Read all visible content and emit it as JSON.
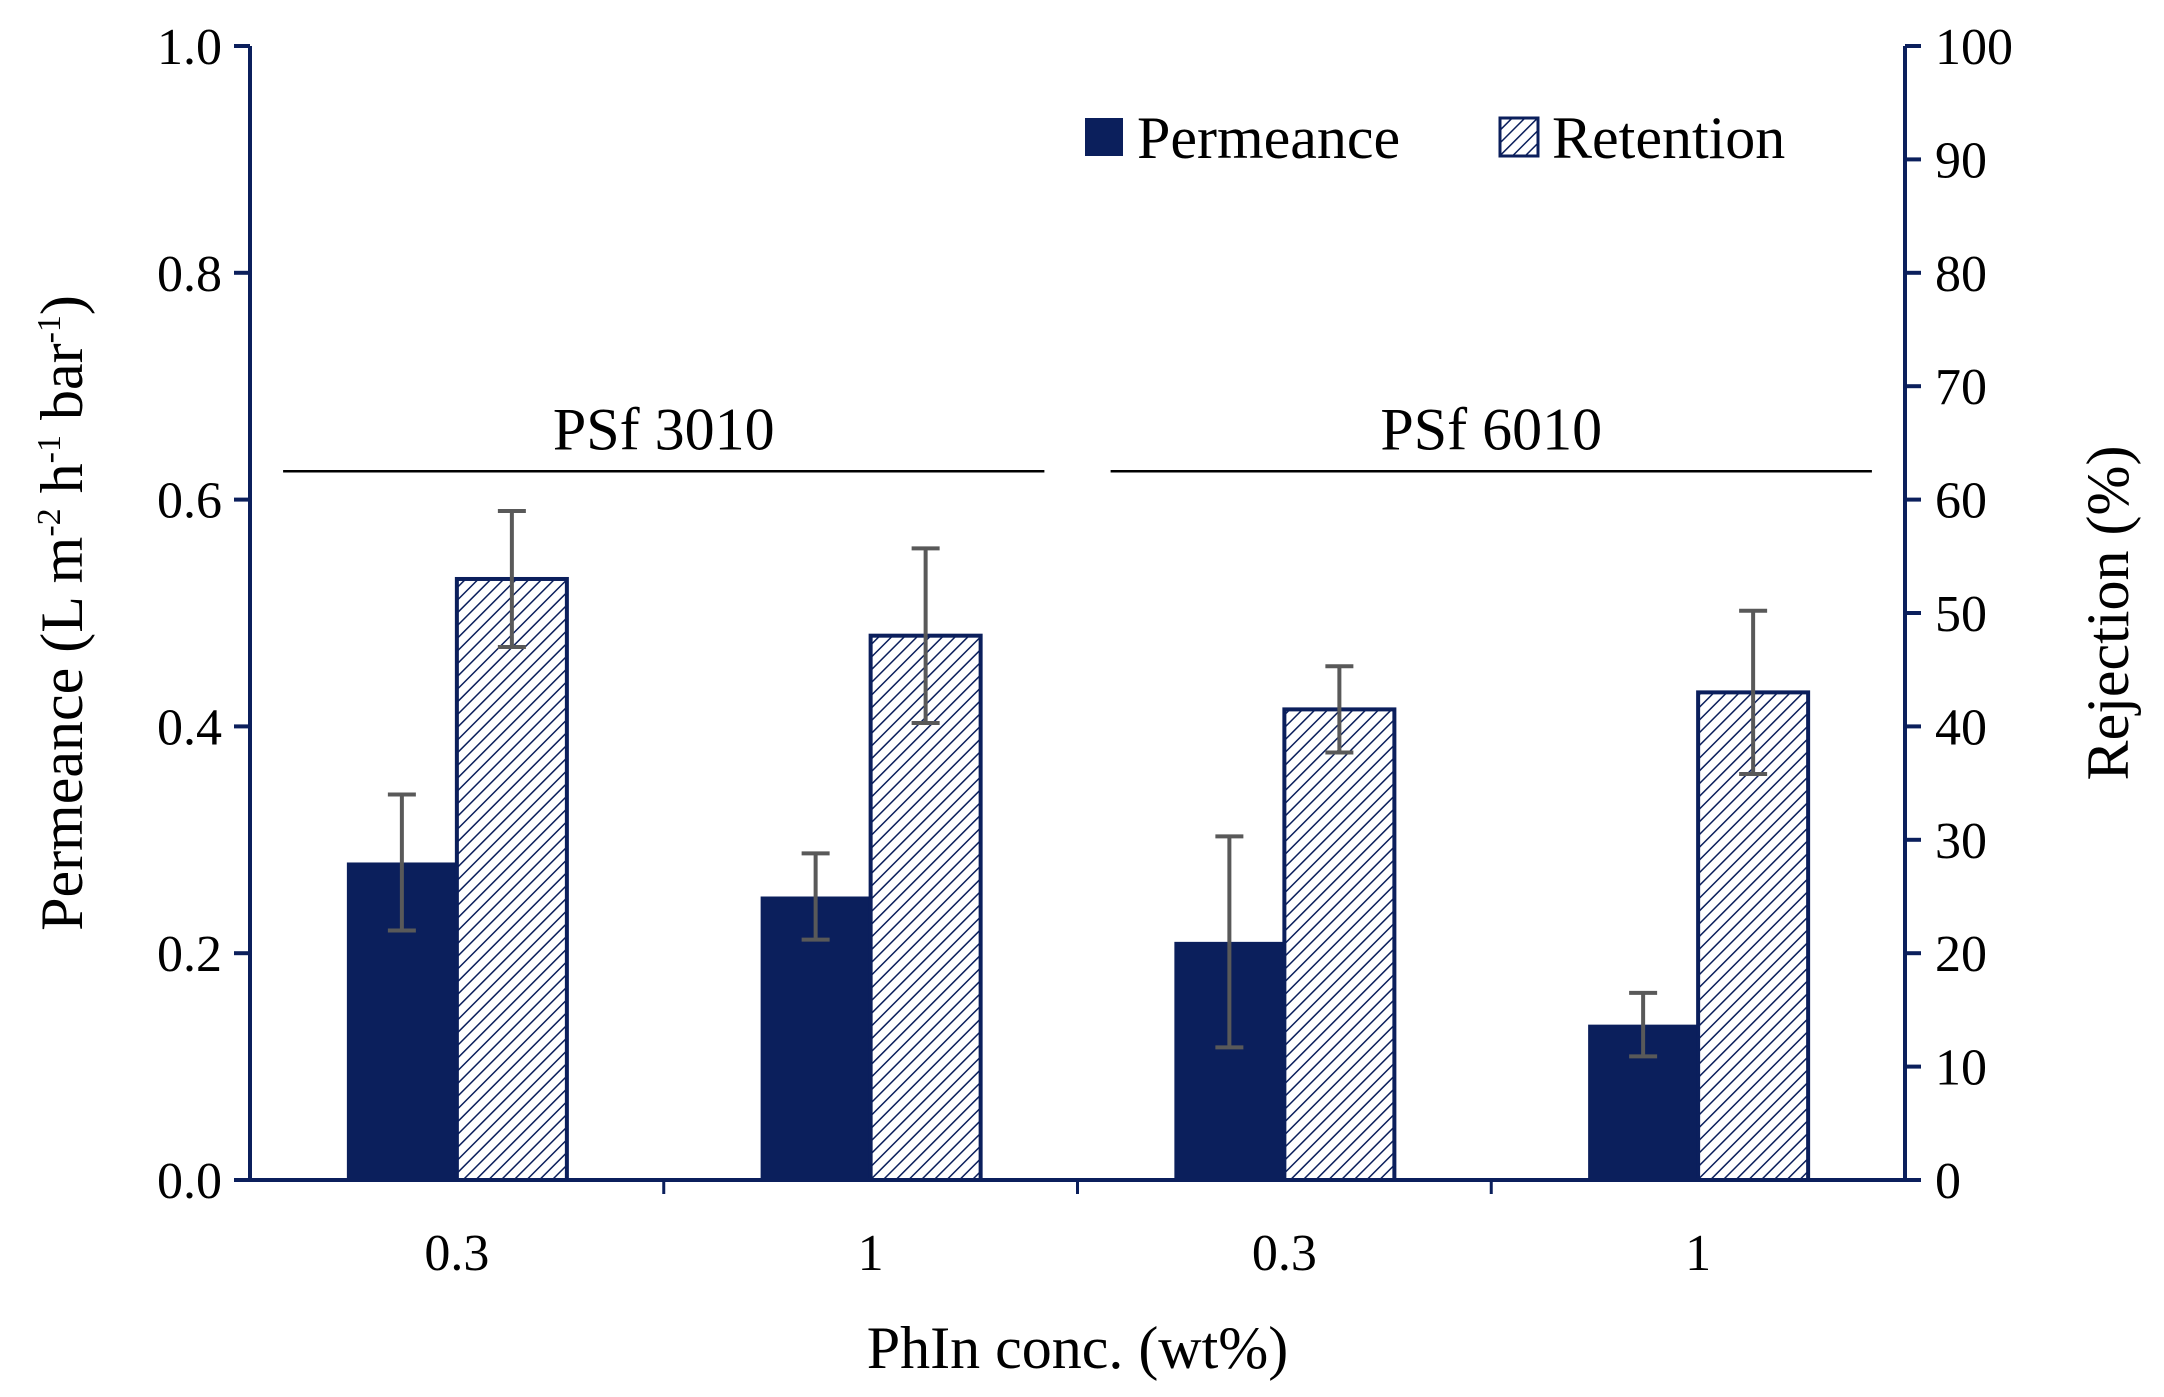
{
  "chart_data": {
    "type": "bar",
    "title": "",
    "xlabel": "PhIn conc. (wt%)",
    "ylabel": {
      "main": "Permeance (L m",
      "sup1": "-2",
      "mid1": " h",
      "sup2": "-1",
      "mid2": " bar",
      "sup3": "-1",
      "end": ")"
    },
    "ylabel_right": "Rejection (%)",
    "ylim": [
      0,
      1.0
    ],
    "ylim_right": [
      0,
      100
    ],
    "yticks": [
      "0.0",
      "0.2",
      "0.4",
      "0.6",
      "0.8",
      "1.0"
    ],
    "yticks_right": [
      "0",
      "10",
      "20",
      "30",
      "40",
      "50",
      "60",
      "70",
      "80",
      "90",
      "100"
    ],
    "categories": [
      "0.3",
      "1",
      "0.3",
      "1"
    ],
    "groups": [
      {
        "label": "PSf 3010",
        "from": 0,
        "to": 1
      },
      {
        "label": "PSf 6010",
        "from": 2,
        "to": 3
      }
    ],
    "series": [
      {
        "name": "Permeance",
        "axis": "left",
        "pattern": "solid",
        "values": [
          0.28,
          0.25,
          0.21,
          0.137
        ],
        "errors": [
          0.06,
          0.038,
          0.093,
          0.028
        ]
      },
      {
        "name": "Retention",
        "axis": "right",
        "pattern": "hatched",
        "values": [
          53,
          48,
          41.5,
          43
        ],
        "errors": [
          6,
          7.7,
          3.8,
          7.2
        ]
      }
    ],
    "legend_position": "top-right",
    "colors": {
      "bar": "#0b1f5c",
      "axis": "#0b1f5c",
      "error": "#595959",
      "group_line": "#000000"
    }
  }
}
